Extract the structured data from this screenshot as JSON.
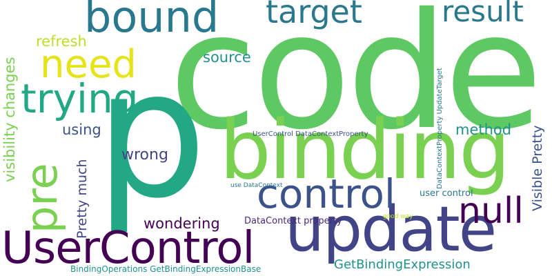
{
  "words": [
    {
      "id": "code",
      "text": "code",
      "color": "#5ec962"
    },
    {
      "id": "p",
      "text": "p",
      "color": "#22a884"
    },
    {
      "id": "binding",
      "text": "binding",
      "color": "#7ad151"
    },
    {
      "id": "update",
      "text": "update",
      "color": "#414487"
    },
    {
      "id": "usercontrol",
      "text": "UserControl",
      "color": "#440154"
    },
    {
      "id": "bound",
      "text": "bound",
      "color": "#2a788e"
    },
    {
      "id": "target",
      "text": "target",
      "color": "#2a788e"
    },
    {
      "id": "result",
      "text": "result",
      "color": "#2a788e"
    },
    {
      "id": "need",
      "text": "need",
      "color": "#e4e419"
    },
    {
      "id": "trying",
      "text": "trying",
      "color": "#22a884"
    },
    {
      "id": "pre",
      "text": "pre",
      "color": "#7ad151"
    },
    {
      "id": "control",
      "text": "control",
      "color": "#3b528b"
    },
    {
      "id": "null",
      "text": "null",
      "color": "#440154"
    },
    {
      "id": "refresh",
      "text": "refresh",
      "color": "#bddf26"
    },
    {
      "id": "visibility-changes",
      "text": "visibility changes",
      "color": "#7ad151"
    },
    {
      "id": "source",
      "text": "source",
      "color": "#21918c"
    },
    {
      "id": "using",
      "text": "using",
      "color": "#3b528b"
    },
    {
      "id": "method",
      "text": "method",
      "color": "#21918c"
    },
    {
      "id": "wrong",
      "text": "wrong",
      "color": "#414487"
    },
    {
      "id": "pretty-much",
      "text": "Pretty much",
      "color": "#414487"
    },
    {
      "id": "visible-pretty",
      "text": "Visible Pretty",
      "color": "#3b528b"
    },
    {
      "id": "wondering",
      "text": "wondering",
      "color": "#440154"
    },
    {
      "id": "datacontext-property",
      "text": "DataContext property",
      "color": "#482878"
    },
    {
      "id": "getbindingexpression",
      "text": "GetBindingExpression",
      "color": "#21918c"
    },
    {
      "id": "bindingoperations",
      "text": "BindingOperations GetBindingExpressionBase",
      "color": "#21918c"
    },
    {
      "id": "usercontrol-datacontextproperty",
      "text": "UserControl DataContextProperty",
      "color": "#3b528b"
    },
    {
      "id": "datacontextproperty-updatetarget",
      "text": "DataContextProperty UpdateTarget",
      "color": "#2a788e"
    },
    {
      "id": "user-control",
      "text": "user control",
      "color": "#2a788e"
    },
    {
      "id": "use-datacontext",
      "text": "use DataContext",
      "color": "#2a788e"
    },
    {
      "id": "good-way",
      "text": "good way",
      "color": "#bddf26"
    }
  ]
}
